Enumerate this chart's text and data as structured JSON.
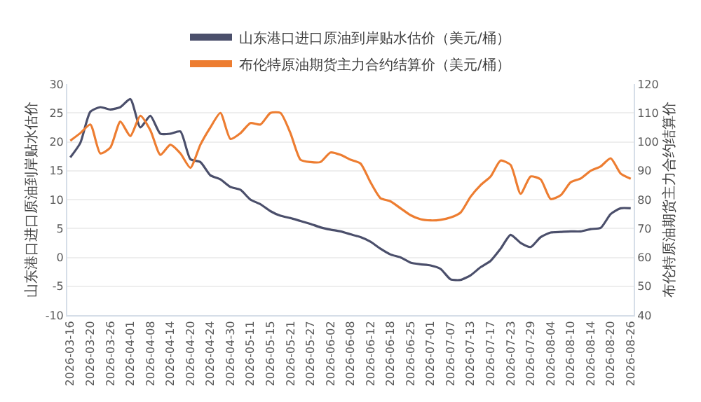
{
  "chart_data": {
    "type": "line",
    "ylabel": "山东港口进口原油到岸贴水估价",
    "y2label": "布伦特原油期货主力合约结算价",
    "categories": [
      "2026-03-16",
      null,
      "2026-03-20",
      null,
      "2026-03-26",
      null,
      "2026-04-01",
      null,
      "2026-04-08",
      null,
      "2026-04-14",
      null,
      "2026-04-20",
      null,
      "2026-04-24",
      null,
      "2026-04-30",
      null,
      "2026-05-11",
      null,
      "2026-05-15",
      null,
      "2026-05-21",
      null,
      "2026-05-27",
      null,
      "2026-06-02",
      null,
      "2026-06-08",
      null,
      "2026-06-12",
      null,
      "2026-06-18",
      null,
      "2026-06-25",
      null,
      "2026-07-01",
      null,
      "2026-07-07",
      null,
      "2026-07-13",
      null,
      "2026-07-17",
      null,
      "2026-07-23",
      null,
      "2026-07-29",
      null,
      "2026-08-04",
      null,
      "2026-08-10",
      null,
      "2026-08-14",
      null,
      "2026-08-20",
      null,
      "2026-08-26"
    ],
    "series": [
      {
        "name": "山东港口进口原油到岸贴水估价（美元/桶）",
        "color": "#4b4f6b",
        "values": [
          17.3,
          19.8,
          25.2,
          26,
          25.6,
          26,
          27.4,
          22.5,
          24.5,
          21.4,
          21.4,
          21.8,
          17,
          16.5,
          14.2,
          13.5,
          12.2,
          11.7,
          10,
          9.2,
          8,
          7.2,
          6.8,
          6.3,
          5.8,
          5.2,
          4.8,
          4.5,
          4,
          3.5,
          2.7,
          1.5,
          0.5,
          0,
          -0.9,
          -1.2,
          -1.4,
          -2,
          -3.8,
          -3.9,
          -3.1,
          -1.7,
          -0.6,
          1.5,
          3.9,
          2.5,
          1.8,
          3.5,
          4.3,
          4.4,
          4.5,
          4.5,
          4.9,
          5.1,
          7.5,
          8.5,
          8.5
        ]
      },
      {
        "name": "布伦特原油期货主力合约结算价（美元/桶）",
        "color": "#ed7d31",
        "axis": "y2",
        "values": [
          100.4,
          103,
          106,
          96,
          98,
          107,
          102,
          109,
          104,
          95.5,
          99,
          96,
          91,
          99,
          105,
          110,
          101,
          103,
          106.5,
          106,
          110,
          110,
          103,
          93.8,
          93,
          93,
          96.3,
          95.5,
          93.8,
          92.5,
          86,
          80.5,
          79.4,
          77,
          74.6,
          73.2,
          72.8,
          73,
          73.8,
          75.5,
          81,
          85,
          88,
          93.5,
          92,
          82,
          88,
          87,
          80.2,
          81.5,
          86,
          87.3,
          90,
          91.5,
          94.3,
          89,
          87.2
        ]
      }
    ],
    "ylim": [
      -10,
      30
    ],
    "yticks": [
      -10,
      -5,
      0,
      5,
      10,
      15,
      20,
      25,
      30
    ],
    "y2lim": [
      40,
      120
    ],
    "y2ticks": [
      40,
      50,
      60,
      70,
      80,
      90,
      100,
      110,
      120
    ],
    "grid": "y",
    "legend": "top",
    "marker": "none",
    "line_style": "solid"
  }
}
